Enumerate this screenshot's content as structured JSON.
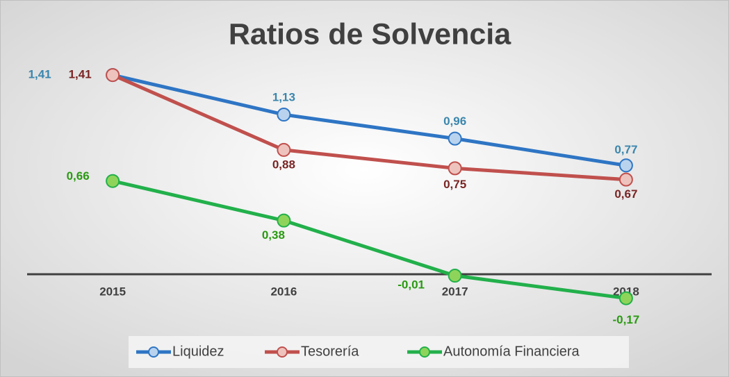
{
  "chart_data": {
    "type": "line",
    "title": "Ratios de Solvencia",
    "categories": [
      "2015",
      "2016",
      "2017",
      "2018"
    ],
    "series": [
      {
        "name": "Liquidez",
        "color": "#2e75c4",
        "label_color": "#3a86ad",
        "marker_fill": "#b9d3ee",
        "values": [
          1.41,
          1.13,
          0.96,
          0.77
        ],
        "value_labels": [
          "1,41",
          "1,13",
          "0,96",
          "0,77"
        ]
      },
      {
        "name": "Tesorería",
        "color": "#c0504d",
        "label_color": "#7a2424",
        "marker_fill": "#eec3bd",
        "values": [
          1.41,
          0.88,
          0.75,
          0.67
        ],
        "value_labels": [
          "1,41",
          "0,88",
          "0,75",
          "0,67"
        ]
      },
      {
        "name": "Autonomía Financiera",
        "color": "#22b04b",
        "label_color": "#2a9a12",
        "marker_fill": "#8fd45a",
        "values": [
          0.66,
          0.38,
          -0.01,
          -0.17
        ],
        "value_labels": [
          "0,66",
          "0,38",
          "-0,01",
          "-0,17"
        ]
      }
    ],
    "ylim": [
      -0.4,
      1.6
    ],
    "legend": "bottom"
  }
}
